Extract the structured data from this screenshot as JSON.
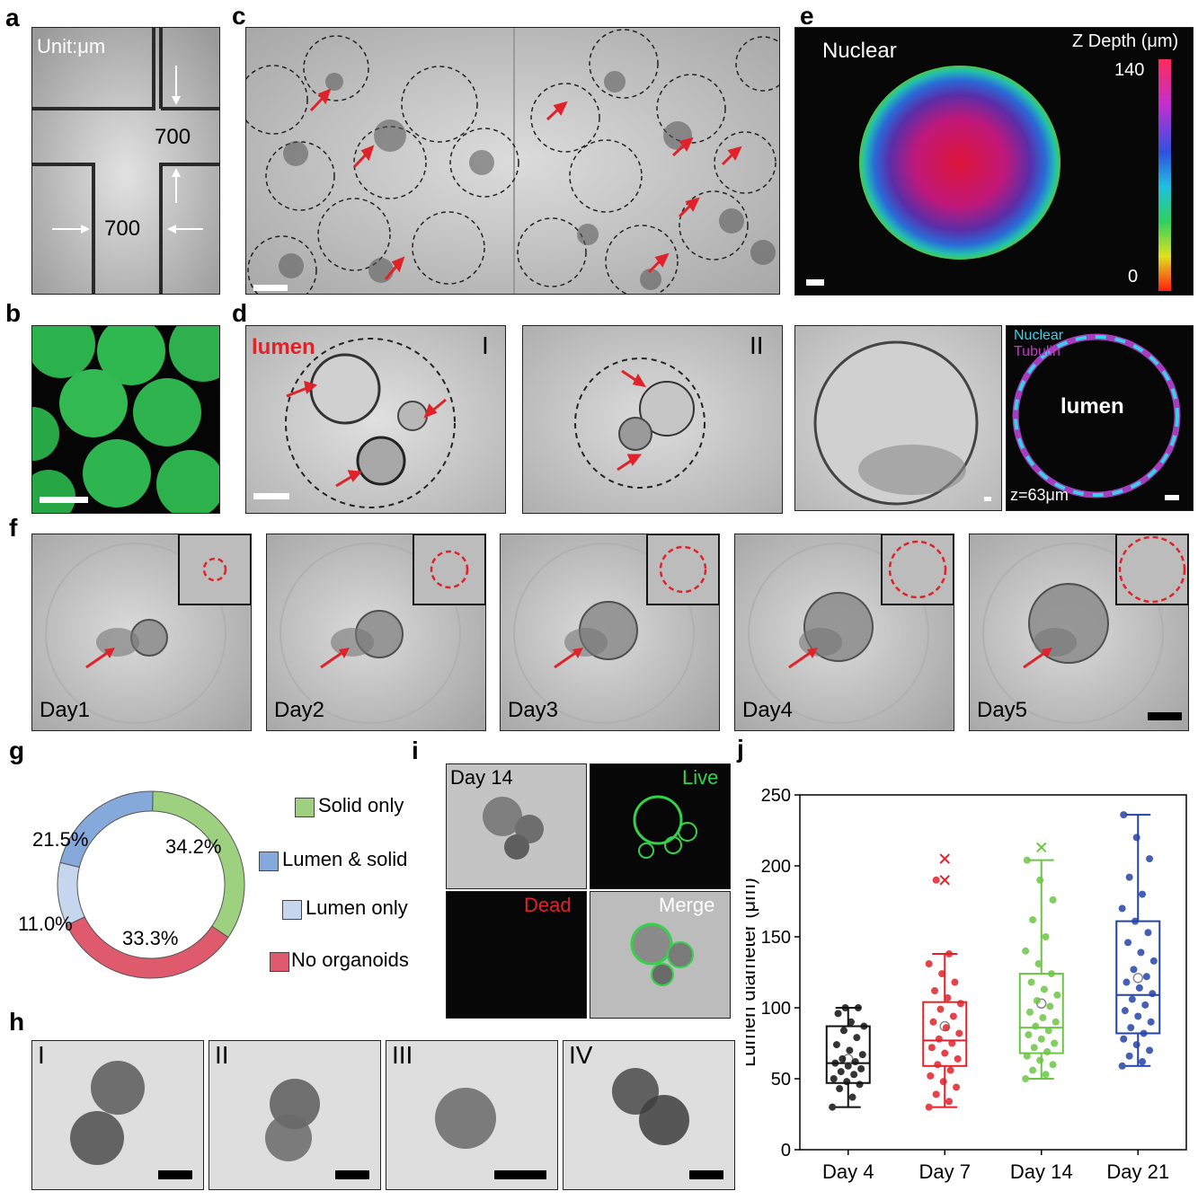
{
  "panel_labels": {
    "a": "a",
    "b": "b",
    "c": "c",
    "d": "d",
    "e": "e",
    "f": "f",
    "g": "g",
    "h": "h",
    "i": "i",
    "j": "j"
  },
  "panel_a": {
    "unit": "Unit:μm",
    "dim_top": "700",
    "dim_bottom": "700"
  },
  "panel_d": {
    "lumen_label": "lumen",
    "roman1": "I",
    "roman2": "II",
    "center_label": "lumen",
    "nuclear": "Nuclear",
    "tubulin": "Tubulin",
    "z_label": "z=63μm"
  },
  "panel_e": {
    "title": "Nuclear",
    "colorbar_title": "Z Depth (μm)",
    "cb_max": "140",
    "cb_min": "0"
  },
  "panel_f": {
    "days": [
      "Day1",
      "Day2",
      "Day3",
      "Day4",
      "Day5"
    ]
  },
  "panel_g": {
    "slices": [
      {
        "label": "Solid only",
        "pct": 34.2,
        "text": "34.2%",
        "color": "#9dd17f"
      },
      {
        "label": "No organoids",
        "pct": 33.3,
        "text": "33.3%",
        "color": "#e05a6e"
      },
      {
        "label": "Lumen only",
        "pct": 11.0,
        "text": "11.0%",
        "color": "#c5d6ee"
      },
      {
        "label": "Lumen & solid",
        "pct": 21.5,
        "text": "21.5%",
        "color": "#86a9db"
      }
    ],
    "legend": [
      "Solid only",
      "Lumen & solid",
      "Lumen only",
      "No organoids"
    ]
  },
  "panel_h": {
    "romans": [
      "I",
      "II",
      "III",
      "IV"
    ]
  },
  "panel_i": {
    "day": "Day 14",
    "live": "Live",
    "dead": "Dead",
    "merge": "Merge"
  },
  "chart_data": {
    "type": "box",
    "title": "",
    "xlabel": "",
    "ylabel": "Lumen diameter (μm)",
    "ylim": [
      0,
      250
    ],
    "yticks": [
      0,
      50,
      100,
      150,
      200,
      250
    ],
    "categories": [
      "Day 4",
      "Day 7",
      "Day 14",
      "Day 21"
    ],
    "colors": [
      "#111111",
      "#e0222a",
      "#6cc644",
      "#2443a8"
    ],
    "boxes": [
      {
        "min": 30,
        "q1": 47,
        "median": 61,
        "q3": 87,
        "max": 100,
        "mean": 64,
        "outliers": []
      },
      {
        "min": 30,
        "q1": 59,
        "median": 77,
        "q3": 104,
        "max": 138,
        "mean": 87,
        "outliers": [
          190,
          205
        ]
      },
      {
        "min": 50,
        "q1": 68,
        "median": 86,
        "q3": 124,
        "max": 204,
        "mean": 103,
        "outliers": [
          213
        ]
      },
      {
        "min": 59,
        "q1": 82,
        "median": 109,
        "q3": 161,
        "max": 236,
        "mean": 121,
        "outliers": []
      }
    ],
    "points": [
      [
        30,
        37,
        43,
        46,
        48,
        50,
        53,
        55,
        57,
        59,
        61,
        62,
        64,
        67,
        70,
        74,
        79,
        84,
        87,
        90,
        96,
        100,
        100
      ],
      [
        30,
        34,
        39,
        44,
        48,
        52,
        56,
        60,
        64,
        68,
        72,
        75,
        78,
        82,
        86,
        90,
        94,
        99,
        103,
        107,
        112,
        118,
        124,
        131,
        138,
        190
      ],
      [
        50,
        53,
        56,
        60,
        63,
        66,
        69,
        72,
        75,
        78,
        81,
        84,
        87,
        90,
        93,
        97,
        101,
        105,
        109,
        113,
        118,
        124,
        131,
        140,
        150,
        162,
        176,
        190,
        204
      ],
      [
        59,
        62,
        66,
        70,
        74,
        78,
        82,
        86,
        90,
        94,
        98,
        102,
        106,
        110,
        114,
        118,
        122,
        127,
        133,
        139,
        146,
        153,
        161,
        170,
        180,
        192,
        205,
        220,
        236
      ]
    ]
  }
}
